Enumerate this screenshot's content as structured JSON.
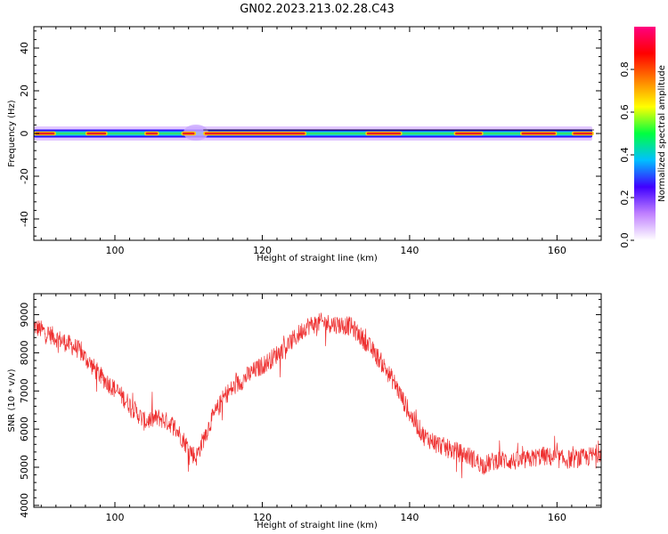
{
  "figure": {
    "title": "GN02.2023.213.02.28.C43"
  },
  "chart_data": [
    {
      "type": "heatmap",
      "xlabel": "Height of straight line (km)",
      "ylabel": "Frequency (Hz)",
      "xlim": [
        89,
        166
      ],
      "ylim": [
        -50,
        50
      ],
      "xticks": [
        100,
        120,
        140,
        160
      ],
      "yticks": [
        40,
        20,
        0,
        -20,
        -40
      ],
      "grid": false,
      "band_center_hz": 0,
      "colorbar": {
        "label": "Normalized spectral amplitude",
        "range": [
          0.0,
          1.0
        ],
        "ticks": [
          "0.0",
          "0.2",
          "0.4",
          "0.6",
          "0.8"
        ],
        "colors": [
          "#ffffff",
          "#c080ff",
          "#4000ff",
          "#00c0ff",
          "#00ff40",
          "#ffff00",
          "#ff8000",
          "#ff0000",
          "#ff0080"
        ]
      },
      "peak_segments_km": [
        [
          89,
          92
        ],
        [
          96,
          99
        ],
        [
          104,
          106
        ],
        [
          109,
          111
        ],
        [
          112,
          126
        ],
        [
          134,
          139
        ],
        [
          146,
          150
        ],
        [
          155,
          160
        ],
        [
          162,
          165
        ]
      ]
    },
    {
      "type": "line",
      "xlabel": "Height of straight line (km)",
      "ylabel": "SNR (10 * v/v)",
      "xlim": [
        89,
        166
      ],
      "ylim": [
        3950,
        9550
      ],
      "xticks": [
        100,
        120,
        140,
        160
      ],
      "yticks": [
        4000,
        5000,
        6000,
        7000,
        8000,
        9000
      ],
      "grid": false,
      "series": [
        {
          "color": "#ee3030",
          "x": [
            89,
            92,
            95,
            98,
            100,
            102,
            104,
            106,
            108,
            110,
            111,
            113,
            115,
            118,
            121,
            124,
            126,
            128,
            130,
            132,
            134,
            136,
            138,
            140,
            142,
            145,
            148,
            150,
            152,
            155,
            158,
            161,
            164,
            166
          ],
          "y": [
            8700,
            8400,
            8100,
            7400,
            7050,
            6650,
            6200,
            6300,
            6100,
            5500,
            5250,
            6200,
            6900,
            7400,
            7800,
            8300,
            8700,
            8800,
            8750,
            8700,
            8300,
            7800,
            7200,
            6400,
            5800,
            5500,
            5300,
            5050,
            5200,
            5150,
            5300,
            5200,
            5250,
            5400
          ]
        }
      ]
    }
  ]
}
